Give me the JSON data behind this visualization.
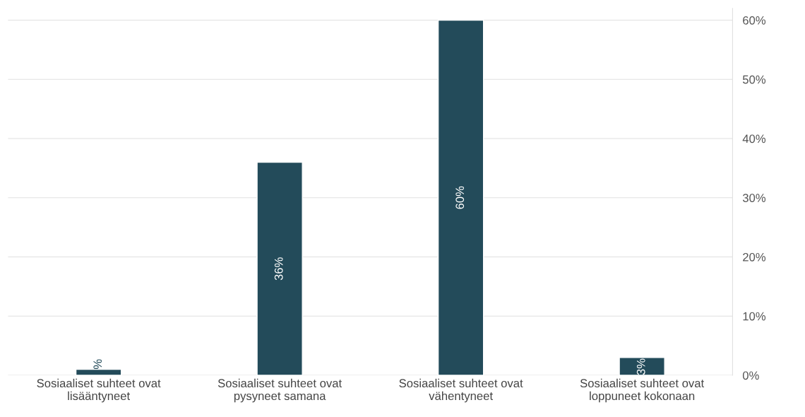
{
  "chart_data": {
    "type": "bar",
    "categories": [
      "Sosiaaliset suhteet ovat\nlisääntyneet",
      "Sosiaaliset suhteet ovat\npysyneet samana",
      "Sosiaaliset suhteet ovat\nvähentyneet",
      "Sosiaaliset suhteet ovat\nloppuneet kokonaan"
    ],
    "values": [
      1,
      36,
      60,
      3
    ],
    "value_labels": [
      "%",
      "36%",
      "60%",
      "3%"
    ],
    "color": "#234b5a",
    "ylim": [
      0,
      62
    ],
    "yticks": [
      {
        "value": 0,
        "label": "0%"
      },
      {
        "value": 10,
        "label": "10%"
      },
      {
        "value": 20,
        "label": "20%"
      },
      {
        "value": 30,
        "label": "30%"
      },
      {
        "value": 40,
        "label": "40%"
      },
      {
        "value": 50,
        "label": "50%"
      },
      {
        "value": 60,
        "label": "60%"
      }
    ],
    "grid": "y",
    "legend": false
  }
}
